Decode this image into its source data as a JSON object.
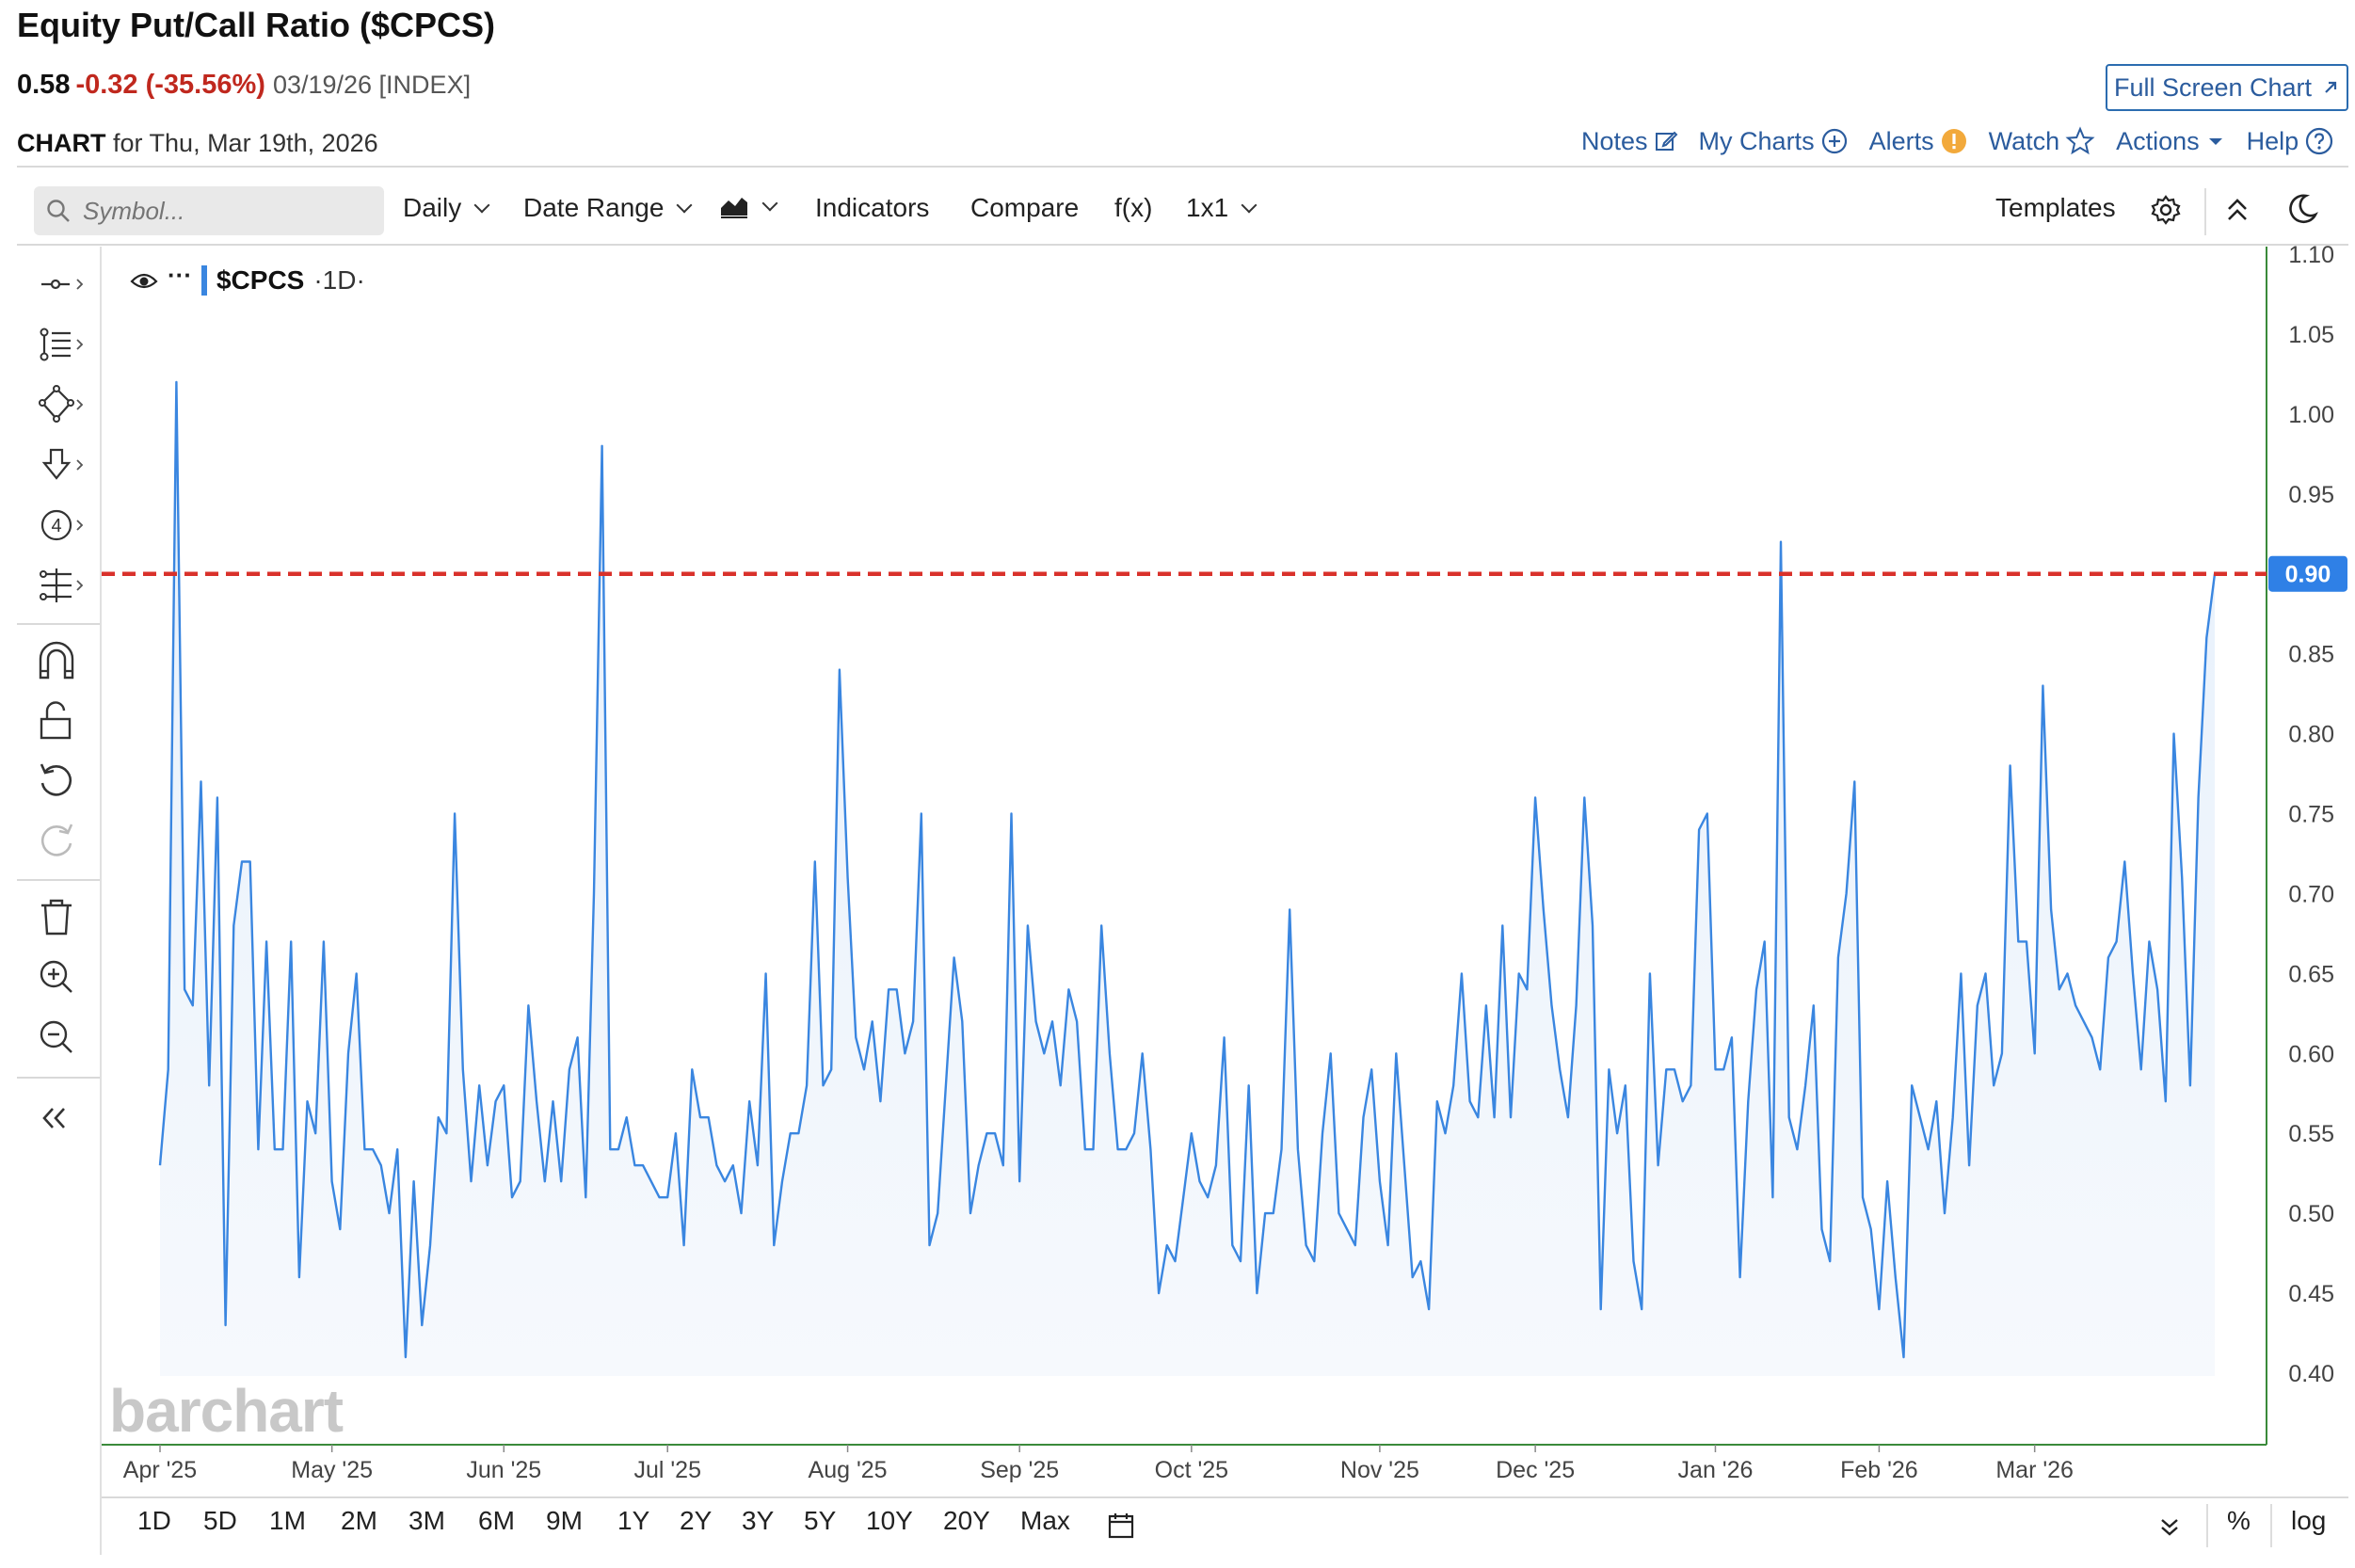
{
  "header": {
    "title": "Equity Put/Call Ratio ($CPCS)",
    "last": "0.58",
    "change": "-0.32 (-35.56%)",
    "date_meta": "03/19/26 [INDEX]",
    "chart_for_label": "CHART",
    "chart_for_rest": "for Thu, Mar 19th, 2026",
    "fullscreen_label": "Full Screen Chart",
    "links": [
      "Notes",
      "My Charts",
      "Alerts",
      "Watch",
      "Actions",
      "Help"
    ]
  },
  "toolbar": {
    "search_placeholder": "Symbol...",
    "interval": "Daily",
    "date_range": "Date Range",
    "indicators": "Indicators",
    "compare": "Compare",
    "fx": "f(x)",
    "layout": "1x1",
    "templates": "Templates"
  },
  "legend": {
    "symbol": "$CPCS",
    "interval": "·1D·"
  },
  "watermark": "barchart",
  "bottom": {
    "ranges": [
      "1D",
      "5D",
      "1M",
      "2M",
      "3M",
      "6M",
      "9M",
      "1Y",
      "2Y",
      "3Y",
      "5Y",
      "10Y",
      "20Y",
      "Max"
    ],
    "pct": "%",
    "log": "log"
  },
  "colors": {
    "line": "#3a86e0",
    "fill": "#e6f0fb",
    "hline": "#d9312b",
    "axis": "#3a8a3a",
    "badge": "#2f80e6"
  },
  "chart_data": {
    "type": "area",
    "title": "Equity Put/Call Ratio ($CPCS)",
    "series": [
      {
        "name": "$CPCS",
        "values": [
          0.53,
          0.59,
          1.02,
          0.64,
          0.63,
          0.77,
          0.58,
          0.76,
          0.43,
          0.68,
          0.72,
          0.72,
          0.54,
          0.67,
          0.54,
          0.54,
          0.67,
          0.46,
          0.57,
          0.55,
          0.67,
          0.52,
          0.49,
          0.6,
          0.65,
          0.54,
          0.54,
          0.53,
          0.5,
          0.54,
          0.41,
          0.52,
          0.43,
          0.48,
          0.56,
          0.55,
          0.75,
          0.59,
          0.52,
          0.58,
          0.53,
          0.57,
          0.58,
          0.51,
          0.52,
          0.63,
          0.57,
          0.52,
          0.57,
          0.52,
          0.59,
          0.61,
          0.51,
          0.7,
          0.98,
          0.54,
          0.54,
          0.56,
          0.53,
          0.53,
          0.52,
          0.51,
          0.51,
          0.55,
          0.48,
          0.59,
          0.56,
          0.56,
          0.53,
          0.52,
          0.53,
          0.5,
          0.57,
          0.53,
          0.65,
          0.48,
          0.52,
          0.55,
          0.55,
          0.58,
          0.72,
          0.58,
          0.59,
          0.84,
          0.71,
          0.61,
          0.59,
          0.62,
          0.57,
          0.64,
          0.64,
          0.6,
          0.62,
          0.75,
          0.48,
          0.5,
          0.58,
          0.66,
          0.62,
          0.5,
          0.53,
          0.55,
          0.55,
          0.53,
          0.75,
          0.52,
          0.68,
          0.62,
          0.6,
          0.62,
          0.58,
          0.64,
          0.62,
          0.54,
          0.54,
          0.68,
          0.6,
          0.54,
          0.54,
          0.55,
          0.6,
          0.54,
          0.45,
          0.48,
          0.47,
          0.51,
          0.55,
          0.52,
          0.51,
          0.53,
          0.61,
          0.48,
          0.47,
          0.58,
          0.45,
          0.5,
          0.5,
          0.54,
          0.69,
          0.54,
          0.48,
          0.47,
          0.55,
          0.6,
          0.5,
          0.49,
          0.48,
          0.56,
          0.59,
          0.52,
          0.48,
          0.6,
          0.53,
          0.46,
          0.47,
          0.44,
          0.57,
          0.55,
          0.58,
          0.65,
          0.57,
          0.56,
          0.63,
          0.56,
          0.68,
          0.56,
          0.65,
          0.64,
          0.76,
          0.69,
          0.63,
          0.59,
          0.56,
          0.63,
          0.76,
          0.68,
          0.44,
          0.59,
          0.55,
          0.58,
          0.47,
          0.44,
          0.65,
          0.53,
          0.59,
          0.59,
          0.57,
          0.58,
          0.74,
          0.75,
          0.59,
          0.59,
          0.61,
          0.46,
          0.57,
          0.64,
          0.67,
          0.51,
          0.92,
          0.56,
          0.54,
          0.58,
          0.63,
          0.49,
          0.47,
          0.66,
          0.7,
          0.77,
          0.51,
          0.49,
          0.44,
          0.52,
          0.46,
          0.41,
          0.58,
          0.56,
          0.54,
          0.57,
          0.5,
          0.56,
          0.65,
          0.53,
          0.63,
          0.65,
          0.58,
          0.6,
          0.78,
          0.67,
          0.67,
          0.6,
          0.83,
          0.69,
          0.64,
          0.65,
          0.63,
          0.62,
          0.61,
          0.59,
          0.66,
          0.67,
          0.72,
          0.65,
          0.59,
          0.67,
          0.64,
          0.57,
          0.8,
          0.71,
          0.58,
          0.76,
          0.86,
          0.9
        ]
      }
    ],
    "x_labels": [
      "Apr '25",
      "May '25",
      "Jun '25",
      "Jul '25",
      "Aug '25",
      "Sep '25",
      "Oct '25",
      "Nov '25",
      "Dec '25",
      "Jan '26",
      "Feb '26",
      "Mar '26"
    ],
    "x_label_positions": [
      0,
      21,
      42,
      62,
      84,
      105,
      126,
      149,
      168,
      190,
      210,
      229
    ],
    "y_ticks": [
      "1.10",
      "1.05",
      "1.00",
      "0.95",
      "0.90",
      "0.85",
      "0.80",
      "0.75",
      "0.70",
      "0.65",
      "0.60",
      "0.55",
      "0.50",
      "0.45",
      "0.40"
    ],
    "ylim": [
      0.355,
      1.105
    ],
    "reference_line": {
      "value": 0.9,
      "label": "0.90",
      "style": "dashed"
    },
    "grid": false
  }
}
